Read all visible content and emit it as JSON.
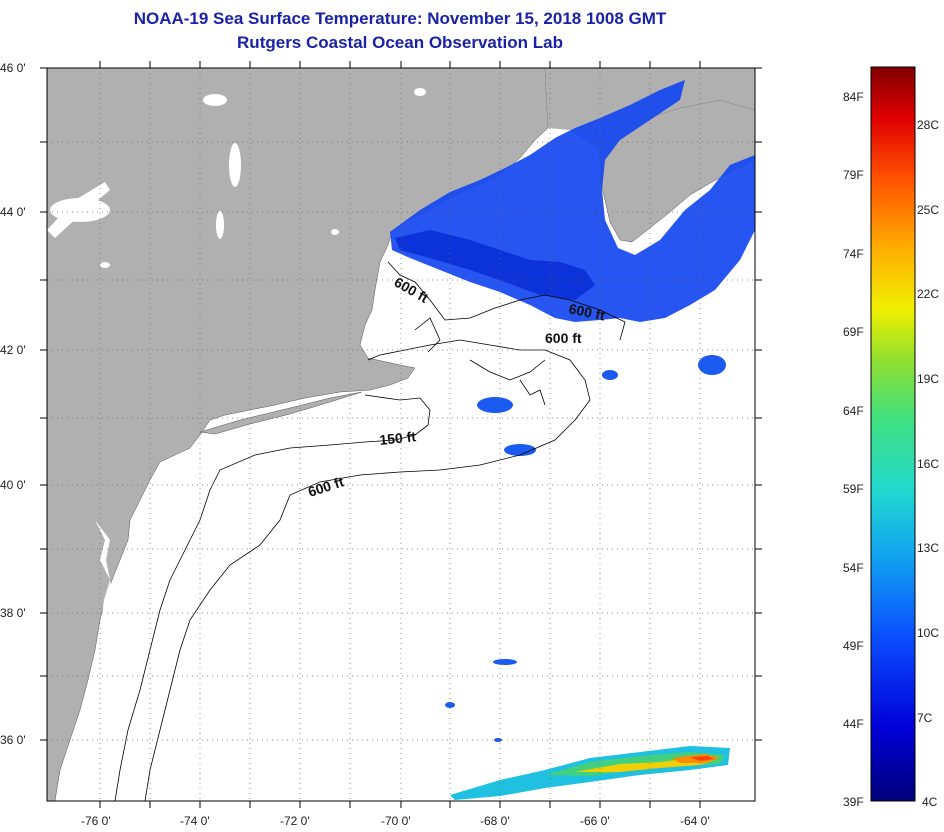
{
  "title": {
    "line1": "NOAA-19 Sea Surface Temperature:  November 15, 2018 1008 GMT",
    "line2": "Rutgers Coastal Ocean Observation Lab"
  },
  "colors": {
    "land": "#b0b0b0",
    "title": "#1a22a8",
    "ocean_nodata": "#ffffff"
  },
  "axes": {
    "lat_labels": [
      "46 0'",
      "44 0'",
      "42 0'",
      "40 0'",
      "38 0'",
      "36 0'"
    ],
    "lon_labels": [
      "-76 0'",
      "-74 0'",
      "-72 0'",
      "-70 0'",
      "-68 0'",
      "-66 0'",
      "-64 0'"
    ],
    "lat_range": [
      35,
      46
    ],
    "lon_range": [
      -77,
      -63
    ]
  },
  "contours": [
    {
      "label": "600 ft"
    },
    {
      "label": "600 ft"
    },
    {
      "label": "600 ft"
    },
    {
      "label": "150 ft"
    },
    {
      "label": "600 ft"
    }
  ],
  "colorbar": {
    "fahrenheit_labels": [
      "84F",
      "79F",
      "74F",
      "69F",
      "64F",
      "59F",
      "54F",
      "49F",
      "44F",
      "39F"
    ],
    "celsius_labels": [
      "28C",
      "25C",
      "22C",
      "19C",
      "16C",
      "13C",
      "10C",
      "7C",
      "4C"
    ],
    "range_c": [
      4,
      29
    ]
  }
}
